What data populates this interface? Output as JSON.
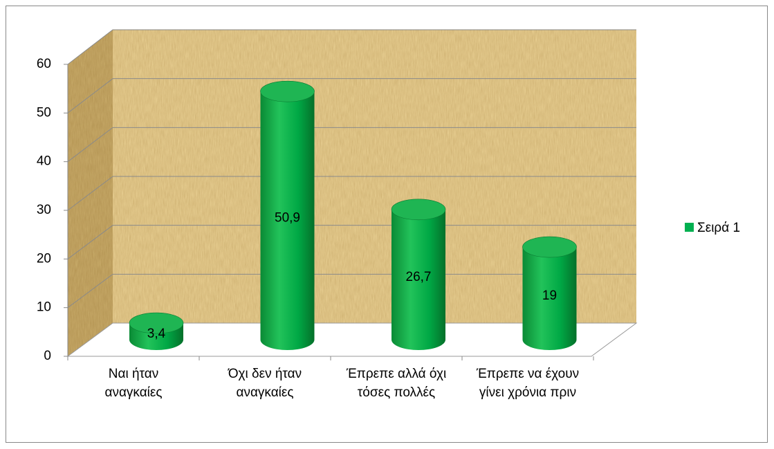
{
  "chart_data": {
    "type": "cylinder",
    "categories": [
      "Ναι ήταν αναγκαίες",
      "Όχι δεν ήταν αναγκαίες",
      "Έπρεπε αλλά όχι τόσες πολλές",
      "Έπρεπε να έχουν γίνει χρόνια πριν"
    ],
    "series": [
      {
        "name": "Σειρά 1",
        "color": "#00b050",
        "values": [
          3.4,
          50.9,
          26.7,
          19
        ],
        "value_labels": [
          "3,4",
          "50,9",
          "26,7",
          "19"
        ]
      }
    ],
    "ylim": [
      0,
      60
    ],
    "yticks": [
      0,
      10,
      20,
      30,
      40,
      50,
      60
    ],
    "grid": true,
    "legend": "right"
  }
}
